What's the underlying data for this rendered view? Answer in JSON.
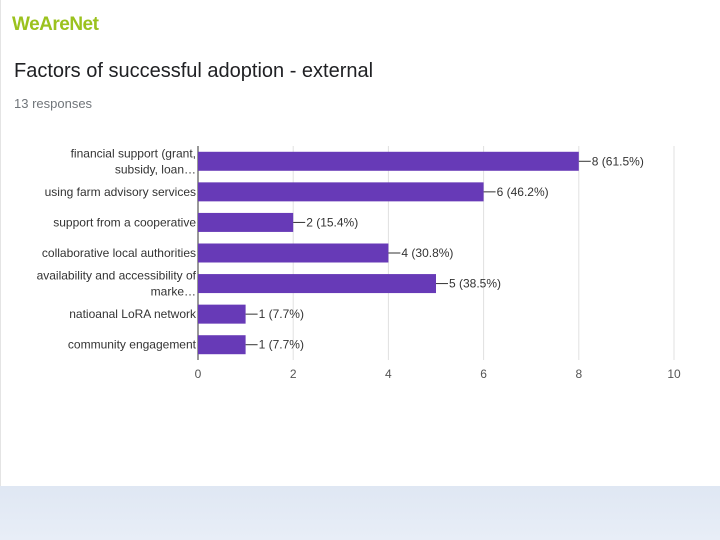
{
  "brand": {
    "logo_text": "WeAreNet",
    "logo_color": "#9bc21e"
  },
  "header": {
    "title": "Factors of successful adoption - external",
    "responses": "13 responses"
  },
  "chart_data": {
    "type": "bar",
    "orientation": "horizontal",
    "title": "Factors of successful adoption - external",
    "subtitle": "13 responses",
    "bar_color": "#673ab7",
    "categories": [
      [
        "financial support (grant,",
        "subsidy, loan…"
      ],
      [
        "using farm advisory services"
      ],
      [
        "support from a cooperative"
      ],
      [
        "collaborative local authorities"
      ],
      [
        "availability and accessibility of",
        "marke…"
      ],
      [
        "natioanal LoRA network"
      ],
      [
        "community engagement"
      ]
    ],
    "values": [
      8,
      6,
      2,
      4,
      5,
      1,
      1
    ],
    "value_labels": [
      "8 (61.5%)",
      "6 (46.2%)",
      "2 (15.4%)",
      "4 (30.8%)",
      "5 (38.5%)",
      "1 (7.7%)",
      "1 (7.7%)"
    ],
    "xlim": [
      0,
      10
    ],
    "xticks": [
      0,
      2,
      4,
      6,
      8,
      10
    ],
    "grid": true,
    "xlabel": "",
    "ylabel": ""
  }
}
